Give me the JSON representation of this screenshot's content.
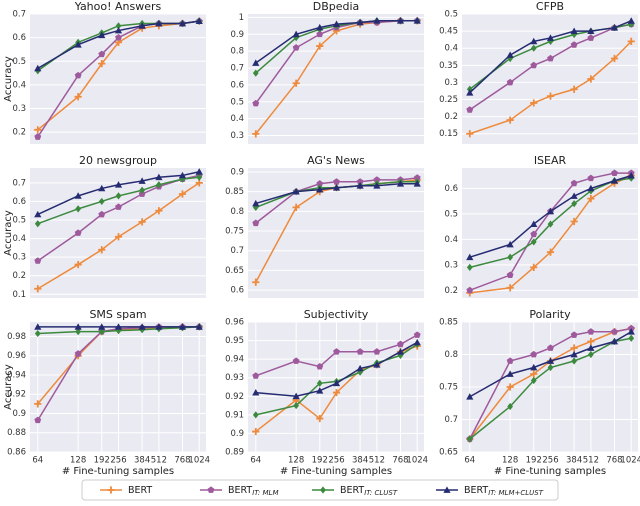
{
  "chart_data": [
    {
      "type": "line",
      "title": "Yahoo! Answers",
      "ylabel": "Accuracy",
      "x": [
        64,
        128,
        192,
        256,
        384,
        512,
        768,
        1024
      ],
      "xlim": [
        56,
        1150
      ],
      "xscale": "log",
      "ylim": [
        0.15,
        0.7
      ],
      "yticks": [
        0.2,
        0.3,
        0.4,
        0.5,
        0.6,
        0.7
      ],
      "grid": true,
      "series": [
        {
          "values": [
            0.21,
            0.35,
            0.49,
            0.58,
            0.64,
            0.65,
            0.66,
            0.67
          ]
        },
        {
          "values": [
            0.18,
            0.44,
            0.53,
            0.6,
            0.65,
            0.66,
            0.66,
            0.67
          ]
        },
        {
          "values": [
            0.46,
            0.58,
            0.62,
            0.65,
            0.66,
            0.66,
            0.66,
            0.67
          ]
        },
        {
          "values": [
            0.47,
            0.57,
            0.61,
            0.63,
            0.65,
            0.66,
            0.66,
            0.67
          ]
        }
      ]
    },
    {
      "type": "line",
      "title": "DBpedia",
      "x": [
        64,
        128,
        192,
        256,
        384,
        512,
        768,
        1024
      ],
      "xlim": [
        56,
        1150
      ],
      "xscale": "log",
      "ylim": [
        0.25,
        1.02
      ],
      "yticks": [
        0.3,
        0.4,
        0.5,
        0.6,
        0.7,
        0.8,
        0.9,
        1
      ],
      "grid": true,
      "series": [
        {
          "values": [
            0.31,
            0.61,
            0.83,
            0.92,
            0.96,
            0.97,
            0.98,
            0.98
          ]
        },
        {
          "values": [
            0.49,
            0.82,
            0.9,
            0.94,
            0.97,
            0.97,
            0.98,
            0.98
          ]
        },
        {
          "values": [
            0.67,
            0.88,
            0.93,
            0.95,
            0.97,
            0.98,
            0.98,
            0.98
          ]
        },
        {
          "values": [
            0.73,
            0.9,
            0.94,
            0.96,
            0.97,
            0.98,
            0.98,
            0.98
          ]
        }
      ]
    },
    {
      "type": "line",
      "title": "CFPB",
      "x": [
        64,
        128,
        192,
        256,
        384,
        512,
        768,
        1024
      ],
      "xlim": [
        56,
        1150
      ],
      "xscale": "log",
      "ylim": [
        0.12,
        0.5
      ],
      "yticks": [
        0.15,
        0.2,
        0.25,
        0.3,
        0.35,
        0.4,
        0.45,
        0.5
      ],
      "grid": true,
      "series": [
        {
          "values": [
            0.15,
            0.19,
            0.24,
            0.26,
            0.28,
            0.31,
            0.37,
            0.42
          ]
        },
        {
          "values": [
            0.22,
            0.3,
            0.35,
            0.37,
            0.41,
            0.43,
            0.46,
            0.47
          ]
        },
        {
          "values": [
            0.28,
            0.37,
            0.4,
            0.42,
            0.44,
            0.45,
            0.46,
            0.47
          ]
        },
        {
          "values": [
            0.27,
            0.38,
            0.42,
            0.43,
            0.45,
            0.45,
            0.46,
            0.48
          ]
        }
      ]
    },
    {
      "type": "line",
      "title": "20 newsgroup",
      "ylabel": "Accuracy",
      "x": [
        64,
        128,
        192,
        256,
        384,
        512,
        768,
        1024
      ],
      "xlim": [
        56,
        1150
      ],
      "xscale": "log",
      "ylim": [
        0.08,
        0.78
      ],
      "yticks": [
        0.1,
        0.2,
        0.3,
        0.4,
        0.5,
        0.6,
        0.7
      ],
      "grid": true,
      "series": [
        {
          "values": [
            0.13,
            0.26,
            0.34,
            0.41,
            0.49,
            0.55,
            0.64,
            0.7
          ]
        },
        {
          "values": [
            0.28,
            0.43,
            0.53,
            0.57,
            0.64,
            0.68,
            0.72,
            0.74
          ]
        },
        {
          "values": [
            0.48,
            0.56,
            0.6,
            0.63,
            0.66,
            0.69,
            0.72,
            0.73
          ]
        },
        {
          "values": [
            0.53,
            0.63,
            0.67,
            0.69,
            0.71,
            0.73,
            0.74,
            0.76
          ]
        }
      ]
    },
    {
      "type": "line",
      "title": "AG's News",
      "x": [
        64,
        128,
        192,
        256,
        384,
        512,
        768,
        1024
      ],
      "xlim": [
        56,
        1150
      ],
      "xscale": "log",
      "ylim": [
        0.58,
        0.91
      ],
      "yticks": [
        0.6,
        0.65,
        0.7,
        0.75,
        0.8,
        0.85,
        0.9
      ],
      "grid": true,
      "series": [
        {
          "values": [
            0.62,
            0.81,
            0.85,
            0.86,
            0.865,
            0.87,
            0.875,
            0.88
          ]
        },
        {
          "values": [
            0.77,
            0.85,
            0.87,
            0.875,
            0.875,
            0.88,
            0.88,
            0.885
          ]
        },
        {
          "values": [
            0.81,
            0.85,
            0.86,
            0.86,
            0.865,
            0.87,
            0.875,
            0.875
          ]
        },
        {
          "values": [
            0.82,
            0.85,
            0.855,
            0.86,
            0.865,
            0.865,
            0.87,
            0.87
          ]
        }
      ]
    },
    {
      "type": "line",
      "title": "ISEAR",
      "x": [
        64,
        128,
        192,
        256,
        384,
        512,
        768,
        1024
      ],
      "xlim": [
        56,
        1150
      ],
      "xscale": "log",
      "ylim": [
        0.17,
        0.68
      ],
      "yticks": [
        0.2,
        0.3,
        0.4,
        0.5,
        0.6
      ],
      "grid": true,
      "series": [
        {
          "values": [
            0.19,
            0.21,
            0.29,
            0.35,
            0.47,
            0.56,
            0.62,
            0.65
          ]
        },
        {
          "values": [
            0.2,
            0.26,
            0.42,
            0.51,
            0.62,
            0.64,
            0.66,
            0.66
          ]
        },
        {
          "values": [
            0.29,
            0.33,
            0.39,
            0.46,
            0.54,
            0.59,
            0.63,
            0.64
          ]
        },
        {
          "values": [
            0.33,
            0.38,
            0.46,
            0.51,
            0.57,
            0.6,
            0.63,
            0.65
          ]
        }
      ]
    },
    {
      "type": "line",
      "title": "SMS spam",
      "ylabel": "Accuracy",
      "xlabel": "# Fine-tuning samples",
      "x": [
        64,
        128,
        192,
        256,
        384,
        512,
        768,
        1024
      ],
      "xlim": [
        56,
        1150
      ],
      "xscale": "log",
      "xticks": [
        64,
        128,
        192,
        256,
        384,
        512,
        768,
        1024
      ],
      "ylim": [
        0.86,
        0.995
      ],
      "yticks": [
        0.86,
        0.88,
        0.9,
        0.92,
        0.94,
        0.96,
        0.98
      ],
      "grid": true,
      "series": [
        {
          "values": [
            0.91,
            0.96,
            0.985,
            0.987,
            0.988,
            0.989,
            0.99,
            0.99
          ]
        },
        {
          "values": [
            0.893,
            0.962,
            0.985,
            0.988,
            0.989,
            0.99,
            0.99,
            0.99
          ]
        },
        {
          "values": [
            0.983,
            0.985,
            0.985,
            0.986,
            0.987,
            0.988,
            0.989,
            0.99
          ]
        },
        {
          "values": [
            0.99,
            0.99,
            0.99,
            0.99,
            0.99,
            0.99,
            0.99,
            0.99
          ]
        }
      ]
    },
    {
      "type": "line",
      "title": "Subjectivity",
      "xlabel": "# Fine-tuning samples",
      "x": [
        64,
        128,
        192,
        256,
        384,
        512,
        768,
        1024
      ],
      "xlim": [
        56,
        1150
      ],
      "xscale": "log",
      "xticks": [
        64,
        128,
        192,
        256,
        384,
        512,
        768,
        1024
      ],
      "ylim": [
        0.89,
        0.96
      ],
      "yticks": [
        0.89,
        0.9,
        0.91,
        0.92,
        0.93,
        0.94,
        0.95,
        0.96
      ],
      "grid": true,
      "series": [
        {
          "values": [
            0.901,
            0.918,
            0.908,
            0.922,
            0.934,
            0.937,
            0.944,
            0.947
          ]
        },
        {
          "values": [
            0.931,
            0.939,
            0.936,
            0.944,
            0.944,
            0.944,
            0.948,
            0.953
          ]
        },
        {
          "values": [
            0.91,
            0.915,
            0.927,
            0.928,
            0.933,
            0.938,
            0.942,
            0.948
          ]
        },
        {
          "values": [
            0.922,
            0.92,
            0.923,
            0.927,
            0.935,
            0.937,
            0.944,
            0.949
          ]
        }
      ]
    },
    {
      "type": "line",
      "title": "Polarity",
      "xlabel": "# Fine-tuning samples",
      "x": [
        64,
        128,
        192,
        256,
        384,
        512,
        768,
        1024
      ],
      "xlim": [
        56,
        1150
      ],
      "xscale": "log",
      "xticks": [
        64,
        128,
        192,
        256,
        384,
        512,
        768,
        1024
      ],
      "ylim": [
        0.65,
        0.85
      ],
      "yticks": [
        0.65,
        0.7,
        0.75,
        0.8,
        0.85
      ],
      "grid": true,
      "series": [
        {
          "values": [
            0.67,
            0.75,
            0.77,
            0.79,
            0.81,
            0.82,
            0.835,
            0.84
          ]
        },
        {
          "values": [
            0.67,
            0.79,
            0.8,
            0.81,
            0.83,
            0.835,
            0.835,
            0.84
          ]
        },
        {
          "values": [
            0.67,
            0.72,
            0.76,
            0.78,
            0.79,
            0.8,
            0.82,
            0.825
          ]
        },
        {
          "values": [
            0.735,
            0.77,
            0.78,
            0.79,
            0.8,
            0.81,
            0.82,
            0.835
          ]
        }
      ]
    }
  ],
  "legend": [
    {
      "name": "BERT",
      "color": "#ee8a3c",
      "marker": "plus"
    },
    {
      "name": "BERT",
      "sub": "IT: MLM",
      "color": "#9e5a9c",
      "marker": "pentagon"
    },
    {
      "name": "BERT",
      "sub": "IT: CLUST",
      "color": "#3b8a3e",
      "marker": "diamond"
    },
    {
      "name": "BERT",
      "sub": "IT: MLM+CLUST",
      "color": "#262c72",
      "marker": "triangle"
    }
  ]
}
